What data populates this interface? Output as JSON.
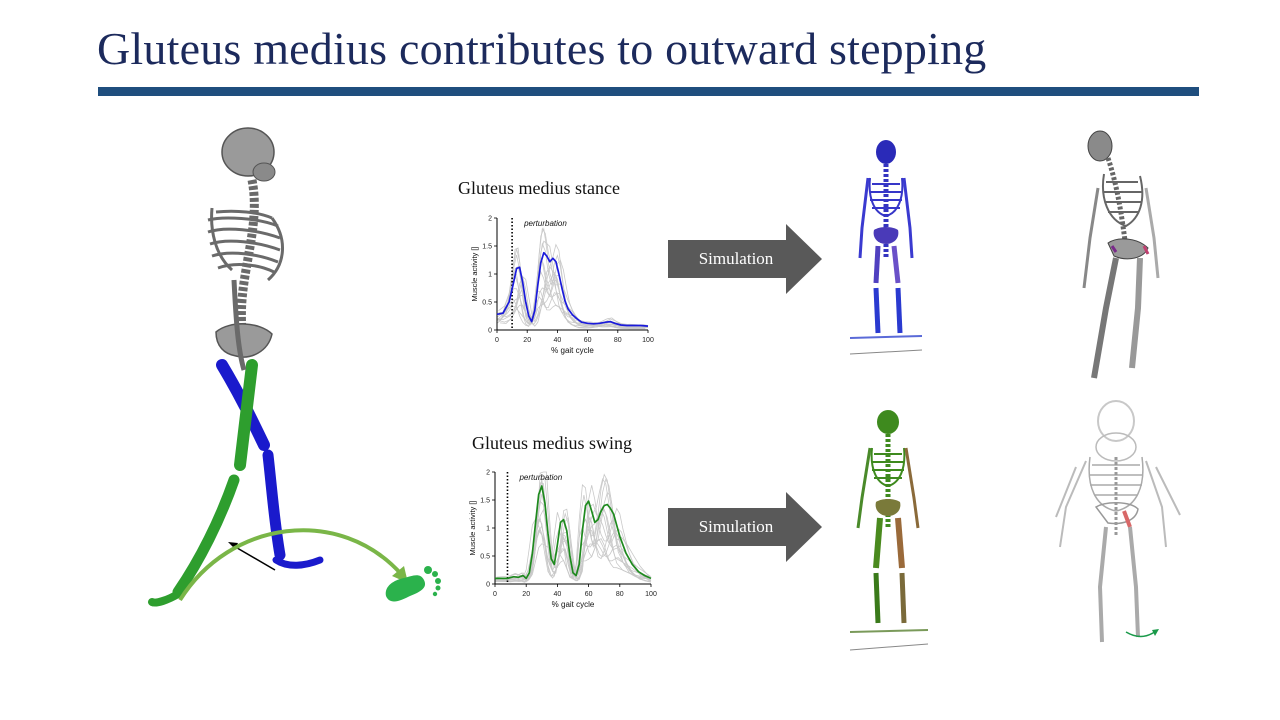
{
  "slide": {
    "title": "Gluteus medius contributes to outward stepping",
    "accent_color": "#1f4e7e",
    "title_color": "#1c2a5c"
  },
  "arrows": {
    "top_label": "Simulation",
    "bottom_label": "Simulation"
  },
  "chart_data": [
    {
      "type": "line",
      "title": "Gluteus medius stance",
      "xlabel": "% gait cycle",
      "ylabel": "Muscle activity []",
      "xlim": [
        0,
        100
      ],
      "ylim": [
        0,
        2
      ],
      "xticks": [
        "0",
        "20",
        "40",
        "60",
        "80",
        "100"
      ],
      "yticks": [
        "0",
        "0.5",
        "1",
        "1.5",
        "2"
      ],
      "annotation": "perturbation",
      "perturbation_x": 10,
      "series": [
        {
          "color": "#1a1adb",
          "x": [
            0,
            4,
            8,
            11,
            13,
            15,
            17,
            19,
            21,
            23,
            25,
            27,
            29,
            31,
            33,
            35,
            37,
            39,
            41,
            43,
            45,
            47,
            50,
            53,
            56,
            60,
            64,
            68,
            72,
            75,
            78,
            82,
            86,
            90,
            95,
            100
          ],
          "y": [
            0.28,
            0.3,
            0.5,
            0.85,
            1.1,
            1.12,
            0.85,
            0.5,
            0.25,
            0.15,
            0.35,
            0.8,
            1.2,
            1.38,
            1.32,
            1.22,
            1.28,
            1.22,
            1.0,
            0.75,
            0.52,
            0.38,
            0.27,
            0.2,
            0.14,
            0.12,
            0.11,
            0.12,
            0.14,
            0.15,
            0.12,
            0.09,
            0.08,
            0.08,
            0.08,
            0.07
          ]
        }
      ]
    },
    {
      "type": "line",
      "title": "Gluteus medius swing",
      "xlabel": "% gait cycle",
      "ylabel": "Muscle activity []",
      "xlim": [
        0,
        100
      ],
      "ylim": [
        0,
        2
      ],
      "xticks": [
        "0",
        "20",
        "40",
        "60",
        "80",
        "100"
      ],
      "yticks": [
        "0",
        "0.5",
        "1",
        "1.5",
        "2"
      ],
      "annotation": "perturbation",
      "perturbation_x": 8,
      "series": [
        {
          "color": "#1e8a1e",
          "x": [
            0,
            8,
            12,
            15,
            18,
            20,
            22,
            24,
            26,
            28,
            30,
            32,
            34,
            36,
            38,
            40,
            42,
            44,
            46,
            48,
            50,
            52,
            54,
            56,
            58,
            60,
            62,
            64,
            66,
            68,
            70,
            72,
            74,
            76,
            78,
            80,
            84,
            88,
            92,
            96,
            100
          ],
          "y": [
            0.1,
            0.1,
            0.13,
            0.12,
            0.15,
            0.1,
            0.2,
            0.55,
            1.1,
            1.6,
            1.75,
            1.45,
            0.9,
            0.45,
            0.35,
            0.7,
            1.1,
            1.15,
            0.95,
            0.5,
            0.2,
            0.15,
            0.35,
            0.95,
            1.4,
            1.48,
            1.3,
            1.1,
            1.15,
            1.3,
            1.4,
            1.42,
            1.35,
            1.25,
            1.05,
            0.85,
            0.55,
            0.35,
            0.22,
            0.15,
            0.1
          ]
        }
      ]
    }
  ]
}
